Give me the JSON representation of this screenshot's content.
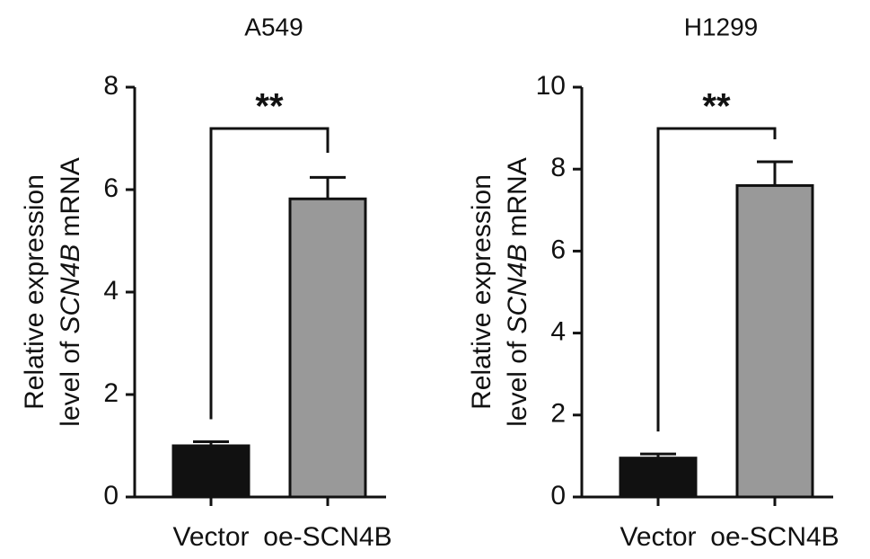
{
  "chart_data": [
    {
      "type": "bar",
      "title": "A549",
      "ylabel": {
        "line1": "Relative expression",
        "line2": [
          "level of",
          "SCN4B",
          "mRNA"
        ]
      },
      "categories": [
        "Vector",
        "oe-SCN4B"
      ],
      "values": [
        1.0,
        5.82
      ],
      "errors": [
        0.08,
        0.42
      ],
      "colors": [
        "#111111",
        "#999999"
      ],
      "ylim": [
        0,
        8
      ],
      "yticks": [
        0,
        2,
        4,
        6,
        8
      ],
      "annotation": "**"
    },
    {
      "type": "bar",
      "title": "H1299",
      "ylabel": {
        "line1": "Relative expression",
        "line2": [
          "level of",
          "SCN4B",
          "mRNA"
        ]
      },
      "categories": [
        "Vector",
        "oe-SCN4B"
      ],
      "values": [
        0.95,
        7.6
      ],
      "errors": [
        0.1,
        0.58
      ],
      "colors": [
        "#111111",
        "#999999"
      ],
      "ylim": [
        0,
        10
      ],
      "yticks": [
        0,
        2,
        4,
        6,
        8,
        10
      ],
      "annotation": "**"
    }
  ]
}
